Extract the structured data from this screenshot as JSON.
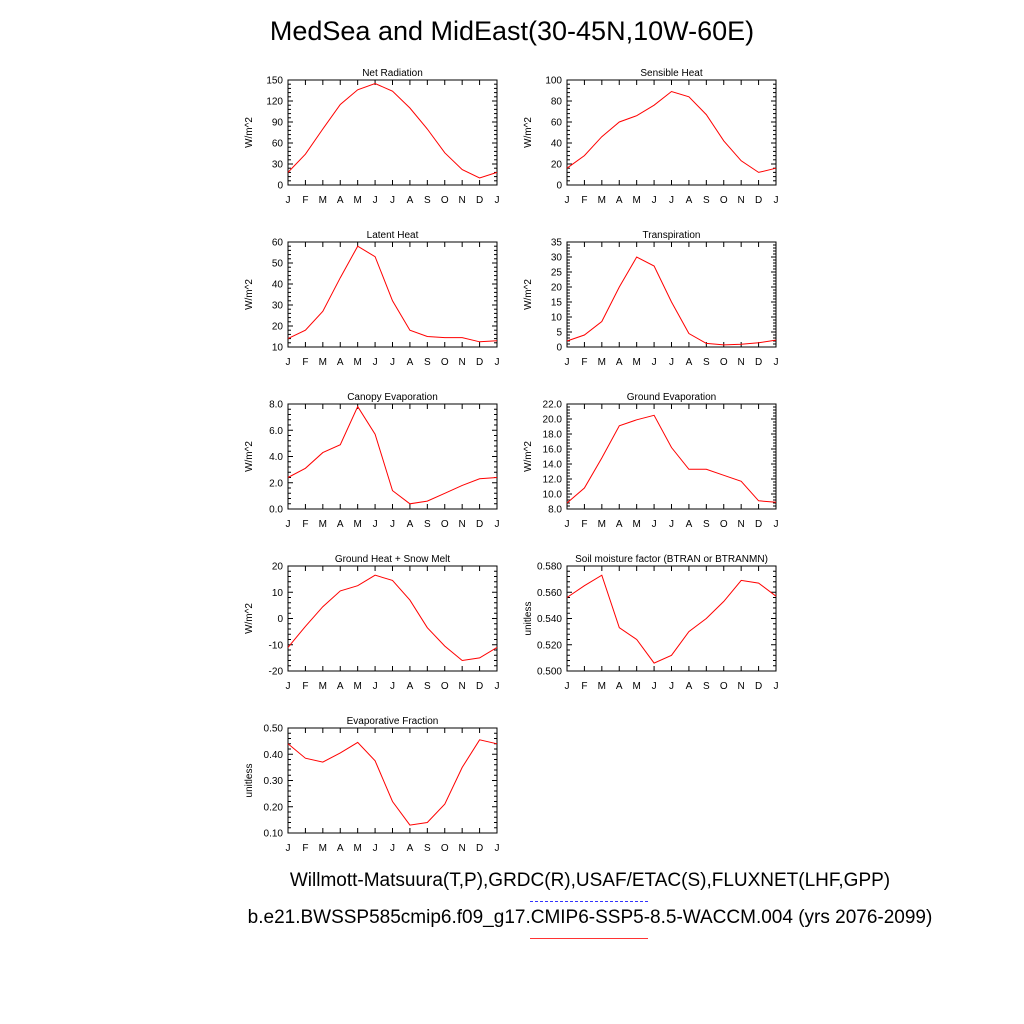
{
  "title": "MedSea and MidEast(30-45N,10W-60E)",
  "footer": {
    "observations": "Willmott-Matsuura(T,P),GRDC(R),USAF/ETAC(S),FLUXNET(LHF,GPP)",
    "model": "b.e21.BWSSP585cmip6.f09_g17.CMIP6-SSP5-8.5-WACCM.004 (yrs 2076-2099)"
  },
  "colors": {
    "model_line": "#ff0000",
    "observations_line": "#3333ff",
    "axes": "#000000"
  },
  "chart_data": [
    {
      "type": "line",
      "title": "Net Radiation",
      "ylabel": "W/m^2",
      "categories": [
        "J",
        "F",
        "M",
        "A",
        "M",
        "J",
        "J",
        "A",
        "S",
        "O",
        "N",
        "D",
        "J"
      ],
      "ylim": [
        0,
        150
      ],
      "yticks": [
        "0",
        "30",
        "60",
        "90",
        "120",
        "150"
      ],
      "series": [
        {
          "values": [
            18,
            44,
            80,
            115,
            136,
            145,
            134,
            110,
            80,
            46,
            22,
            10,
            18
          ]
        }
      ]
    },
    {
      "type": "line",
      "title": "Sensible Heat",
      "ylabel": "W/m^2",
      "categories": [
        "J",
        "F",
        "M",
        "A",
        "M",
        "J",
        "J",
        "A",
        "S",
        "O",
        "N",
        "D",
        "J"
      ],
      "ylim": [
        0,
        100
      ],
      "yticks": [
        "0",
        "20",
        "40",
        "60",
        "80",
        "100"
      ],
      "series": [
        {
          "values": [
            16,
            28,
            46,
            60,
            66,
            76,
            89,
            84,
            67,
            42,
            23,
            12,
            16
          ]
        }
      ]
    },
    {
      "type": "line",
      "title": "Latent Heat",
      "ylabel": "W/m^2",
      "categories": [
        "J",
        "F",
        "M",
        "A",
        "M",
        "J",
        "J",
        "A",
        "S",
        "O",
        "N",
        "D",
        "J"
      ],
      "ylim": [
        10,
        60
      ],
      "yticks": [
        "10",
        "20",
        "30",
        "40",
        "50",
        "60"
      ],
      "series": [
        {
          "values": [
            14,
            18,
            27,
            43,
            58,
            53,
            32,
            18,
            15,
            14.5,
            14.5,
            12.5,
            13
          ]
        }
      ]
    },
    {
      "type": "line",
      "title": "Transpiration",
      "ylabel": "W/m^2",
      "categories": [
        "J",
        "F",
        "M",
        "A",
        "M",
        "J",
        "J",
        "A",
        "S",
        "O",
        "N",
        "D",
        "J"
      ],
      "ylim": [
        0,
        35
      ],
      "yticks": [
        "0",
        "5",
        "10",
        "15",
        "20",
        "25",
        "30",
        "35"
      ],
      "series": [
        {
          "values": [
            2,
            4,
            8.5,
            20,
            30,
            27,
            15,
            4.5,
            1.2,
            0.7,
            0.9,
            1.4,
            2.3
          ]
        }
      ]
    },
    {
      "type": "line",
      "title": "Canopy Evaporation",
      "ylabel": "W/m^2",
      "categories": [
        "J",
        "F",
        "M",
        "A",
        "M",
        "J",
        "J",
        "A",
        "S",
        "O",
        "N",
        "D",
        "J"
      ],
      "ylim": [
        0,
        8
      ],
      "yticks": [
        "0.0",
        "2.0",
        "4.0",
        "6.0",
        "8.0"
      ],
      "series": [
        {
          "values": [
            2.4,
            3.1,
            4.3,
            4.9,
            7.8,
            5.7,
            1.4,
            0.4,
            0.6,
            1.2,
            1.8,
            2.3,
            2.4
          ]
        }
      ]
    },
    {
      "type": "line",
      "title": "Ground Evaporation",
      "ylabel": "W/m^2",
      "categories": [
        "J",
        "F",
        "M",
        "A",
        "M",
        "J",
        "J",
        "A",
        "S",
        "O",
        "N",
        "D",
        "J"
      ],
      "ylim": [
        8,
        22
      ],
      "yticks": [
        "8.0",
        "10.0",
        "12.0",
        "14.0",
        "16.0",
        "18.0",
        "20.0",
        "22.0"
      ],
      "series": [
        {
          "values": [
            8.8,
            10.8,
            14.8,
            19.1,
            19.9,
            20.5,
            16.2,
            13.3,
            13.3,
            12.5,
            11.7,
            9.1,
            8.9
          ]
        }
      ]
    },
    {
      "type": "line",
      "title": "Ground Heat + Snow Melt",
      "ylabel": "W/m^2",
      "categories": [
        "J",
        "F",
        "M",
        "A",
        "M",
        "J",
        "J",
        "A",
        "S",
        "O",
        "N",
        "D",
        "J"
      ],
      "ylim": [
        -20,
        20
      ],
      "yticks": [
        "-20",
        "-10",
        "0",
        "10",
        "20"
      ],
      "series": [
        {
          "values": [
            -11,
            -3,
            4.5,
            10.5,
            12.5,
            16.5,
            14.5,
            7,
            -3.5,
            -10.5,
            -16,
            -15,
            -11
          ]
        }
      ]
    },
    {
      "type": "line",
      "title": "Soil moisture factor (BTRAN or BTRANMN)",
      "ylabel": "unitless",
      "categories": [
        "J",
        "F",
        "M",
        "A",
        "M",
        "J",
        "J",
        "A",
        "S",
        "O",
        "N",
        "D",
        "J"
      ],
      "ylim": [
        0.5,
        0.58
      ],
      "yticks": [
        "0.500",
        "0.520",
        "0.540",
        "0.560",
        "0.580"
      ],
      "series": [
        {
          "values": [
            0.556,
            0.565,
            0.573,
            0.533,
            0.524,
            0.506,
            0.512,
            0.53,
            0.54,
            0.553,
            0.569,
            0.567,
            0.557
          ]
        }
      ]
    },
    {
      "type": "line",
      "title": "Evaporative Fraction",
      "ylabel": "unitless",
      "categories": [
        "J",
        "F",
        "M",
        "A",
        "M",
        "J",
        "J",
        "A",
        "S",
        "O",
        "N",
        "D",
        "J"
      ],
      "ylim": [
        0.1,
        0.5
      ],
      "yticks": [
        "0.10",
        "0.20",
        "0.30",
        "0.40",
        "0.50"
      ],
      "series": [
        {
          "values": [
            0.44,
            0.385,
            0.37,
            0.405,
            0.445,
            0.375,
            0.22,
            0.13,
            0.14,
            0.21,
            0.35,
            0.455,
            0.44
          ]
        }
      ]
    }
  ]
}
